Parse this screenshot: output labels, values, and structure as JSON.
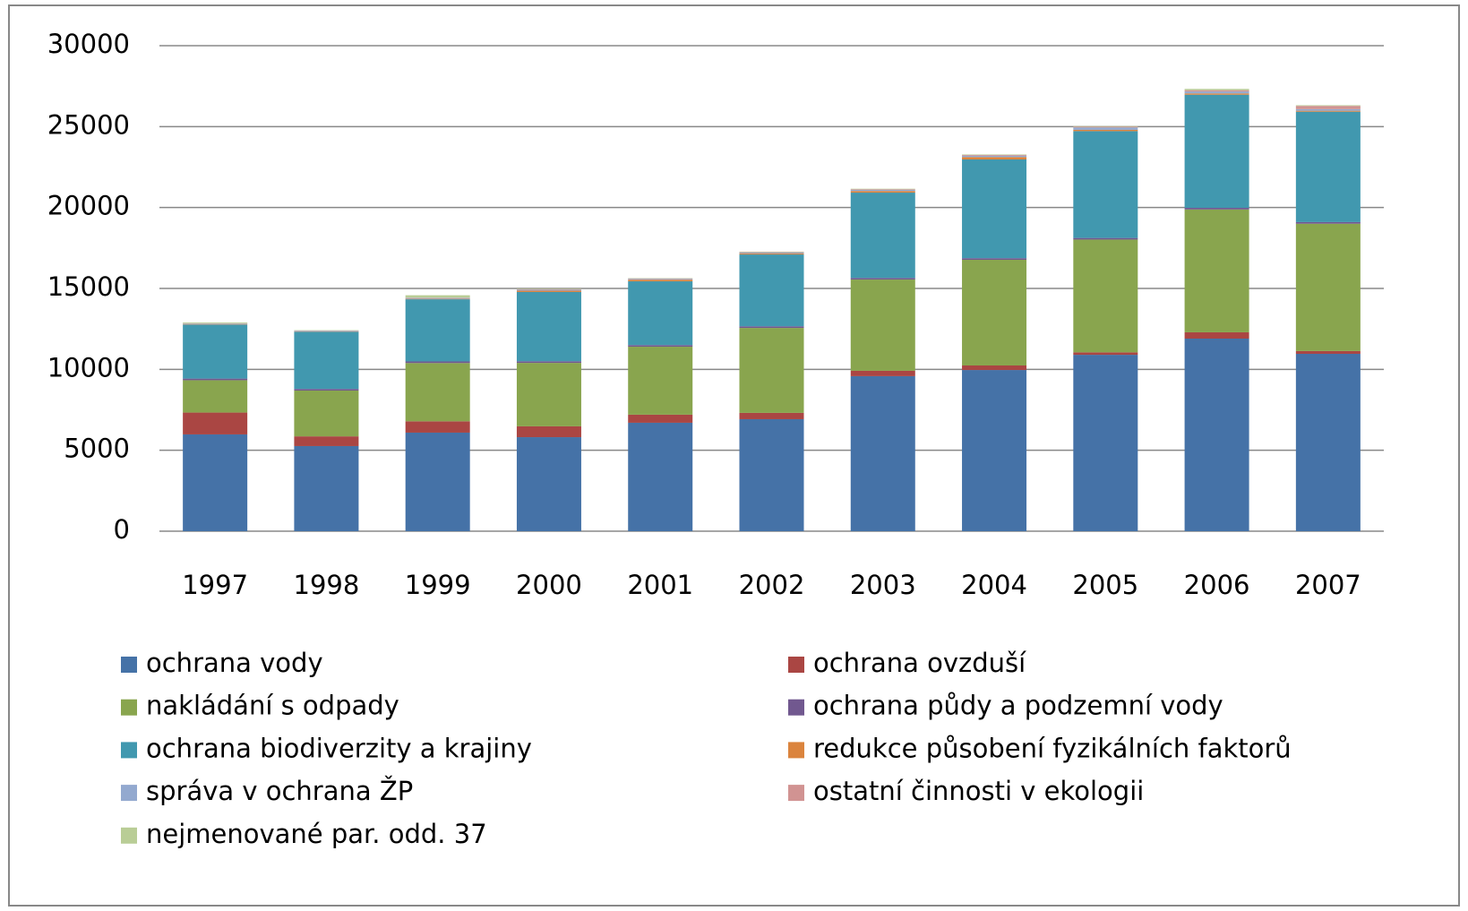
{
  "chart_data": {
    "type": "stacked_bar",
    "categories": [
      "1997",
      "1998",
      "1999",
      "2000",
      "2001",
      "2002",
      "2003",
      "2004",
      "2005",
      "2006",
      "2007"
    ],
    "series": [
      {
        "name": "ochrana vody",
        "color": "#4572a7",
        "values": [
          5980,
          5260,
          6090,
          5810,
          6700,
          6920,
          9580,
          9960,
          10900,
          11900,
          10960
        ]
      },
      {
        "name": "ochrana ovzduší",
        "color": "#aa4643",
        "values": [
          1350,
          600,
          700,
          670,
          500,
          390,
          330,
          280,
          150,
          390,
          170
        ]
      },
      {
        "name": "nakládání s odpady",
        "color": "#89a54e",
        "values": [
          2000,
          2830,
          3600,
          3920,
          4200,
          5250,
          5640,
          6530,
          6970,
          7590,
          7870
        ]
      },
      {
        "name": "ochrana půdy a podzemní vody",
        "color": "#71588f",
        "values": [
          100,
          100,
          100,
          100,
          100,
          100,
          100,
          100,
          100,
          100,
          100
        ]
      },
      {
        "name": "ochrana biodiverzity a krajiny",
        "color": "#4198af",
        "values": [
          3340,
          3540,
          3840,
          4280,
          3940,
          4440,
          5270,
          6100,
          6600,
          6990,
          6820
        ]
      },
      {
        "name": "redukce působení fyzikálních faktorů",
        "color": "#db843d",
        "values": [
          30,
          20,
          30,
          80,
          100,
          60,
          100,
          150,
          80,
          80,
          60
        ]
      },
      {
        "name": "správa v ochrana ŽP",
        "color": "#93a9cf",
        "values": [
          30,
          30,
          50,
          60,
          50,
          50,
          70,
          80,
          150,
          120,
          100
        ]
      },
      {
        "name": "ostatní činnosti v ekologii",
        "color": "#d19392",
        "values": [
          20,
          20,
          20,
          40,
          30,
          30,
          40,
          50,
          50,
          80,
          200
        ]
      },
      {
        "name": "nejmenované par. odd. 37",
        "color": "#b9cd96",
        "values": [
          50,
          20,
          150,
          30,
          20,
          30,
          30,
          30,
          30,
          80,
          40
        ]
      }
    ],
    "ylim": [
      0,
      30000
    ],
    "yticks": [
      0,
      5000,
      10000,
      15000,
      20000,
      25000,
      30000
    ],
    "grid": true,
    "legend": "bottom"
  }
}
